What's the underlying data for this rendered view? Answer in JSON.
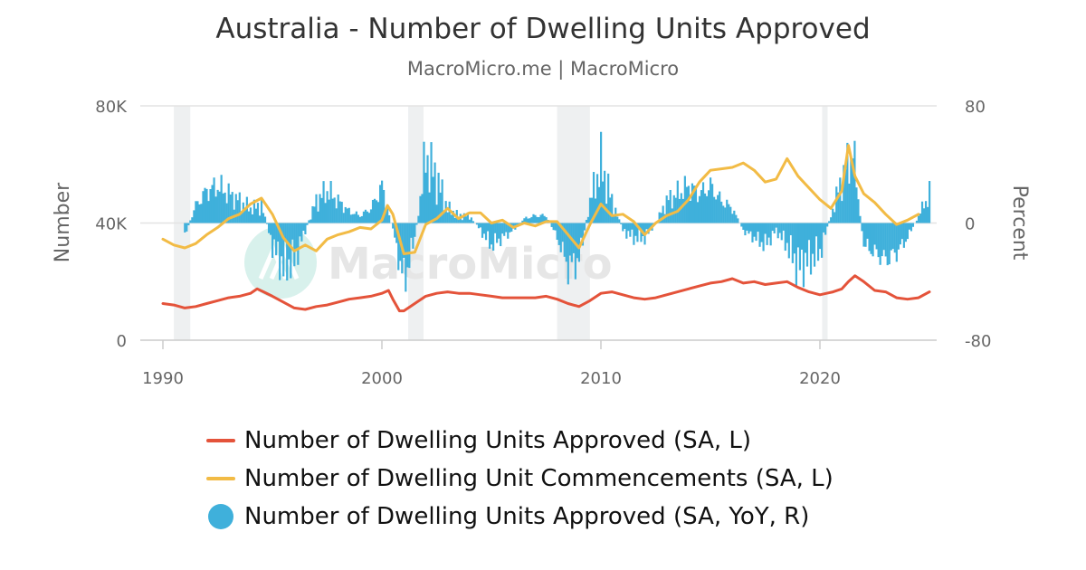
{
  "title": "Australia - Number of Dwelling Units Approved",
  "subtitle": "MacroMicro.me | MacroMicro",
  "watermark": "MacroMicro",
  "colors": {
    "approved": "#e4533a",
    "commencements": "#f2bb45",
    "yoy": "#3fb0db",
    "recession": "#eef0f1"
  },
  "chart_data": {
    "type": "line",
    "title": "Australia - Number of Dwelling Units Approved",
    "xlim": [
      1990,
      2025
    ],
    "x_ticks": [
      "1990",
      "2000",
      "2010",
      "2020"
    ],
    "y_left": {
      "label": "Number",
      "ylim": [
        0,
        80000
      ],
      "tick_labels": [
        "0",
        "40K",
        "80K"
      ]
    },
    "y_right": {
      "label": "Percent",
      "ylim": [
        -80,
        80
      ],
      "tick_labels": [
        "-80",
        "0",
        "80"
      ]
    },
    "grid": "horizontal",
    "legend_position": "bottom",
    "recession_bands": [
      [
        1990.5,
        1991.25
      ],
      [
        2001.2,
        2001.9
      ],
      [
        2008.0,
        2009.5
      ],
      [
        2020.1,
        2020.35
      ]
    ],
    "series": [
      {
        "name": "Number of Dwelling Units Approved (SA, L)",
        "axis": "left",
        "x": [
          1990,
          1990.5,
          1991,
          1991.5,
          1992,
          1992.5,
          1993,
          1993.5,
          1994,
          1994.3,
          1994.6,
          1995,
          1995.5,
          1996,
          1996.5,
          1997,
          1997.5,
          1998,
          1998.5,
          1999,
          1999.5,
          2000,
          2000.3,
          2000.5,
          2000.8,
          2001,
          2001.3,
          2001.6,
          2002,
          2002.5,
          2003,
          2003.5,
          2004,
          2004.5,
          2005,
          2005.5,
          2006,
          2006.5,
          2007,
          2007.5,
          2008,
          2008.5,
          2009,
          2009.5,
          2010,
          2010.5,
          2011,
          2011.5,
          2012,
          2012.5,
          2013,
          2013.5,
          2014,
          2014.5,
          2015,
          2015.5,
          2016,
          2016.5,
          2017,
          2017.5,
          2018,
          2018.5,
          2019,
          2019.5,
          2020,
          2020.3,
          2020.6,
          2021,
          2021.3,
          2021.6,
          2022,
          2022.5,
          2023,
          2023.5,
          2024,
          2024.5,
          2025
        ],
        "values": [
          12500,
          12000,
          11000,
          11500,
          12500,
          13500,
          14500,
          15000,
          16000,
          17500,
          16500,
          15000,
          13000,
          11000,
          10500,
          11500,
          12000,
          13000,
          14000,
          14500,
          15000,
          16000,
          17000,
          14000,
          10000,
          10000,
          11500,
          13000,
          15000,
          16000,
          16500,
          16000,
          16000,
          15500,
          15000,
          14500,
          14500,
          14500,
          14500,
          15000,
          14000,
          12500,
          11500,
          13500,
          16000,
          16500,
          15500,
          14500,
          14000,
          14500,
          15500,
          16500,
          17500,
          18500,
          19500,
          20000,
          21000,
          19500,
          20000,
          19000,
          19500,
          20000,
          18000,
          16500,
          15500,
          16000,
          16500,
          17500,
          20000,
          22000,
          20000,
          17000,
          16500,
          14500,
          14000,
          14500,
          16500
        ]
      },
      {
        "name": "Number of Dwelling Unit Commencements (SA, L)",
        "axis": "left",
        "x": [
          1990,
          1990.5,
          1991,
          1991.5,
          1992,
          1992.5,
          1993,
          1993.5,
          1994,
          1994.5,
          1995,
          1995.5,
          1996,
          1996.5,
          1997,
          1997.5,
          1998,
          1998.5,
          1999,
          1999.5,
          2000,
          2000.25,
          2000.5,
          2001,
          2001.5,
          2002,
          2002.5,
          2003,
          2003.5,
          2004,
          2004.5,
          2005,
          2005.5,
          2006,
          2006.5,
          2007,
          2007.5,
          2008,
          2008.5,
          2009,
          2009.5,
          2010,
          2010.5,
          2011,
          2011.5,
          2012,
          2012.5,
          2013,
          2013.5,
          2014,
          2014.5,
          2015,
          2015.5,
          2016,
          2016.5,
          2017,
          2017.5,
          2018,
          2018.5,
          2019,
          2019.5,
          2020,
          2020.5,
          2021,
          2021.3,
          2021.6,
          2022,
          2022.5,
          2023,
          2023.5,
          2024,
          2024.5
        ],
        "values": [
          34500,
          32500,
          31500,
          33000,
          36000,
          38500,
          41500,
          43000,
          46500,
          48500,
          43000,
          35000,
          30500,
          32500,
          30500,
          34500,
          36000,
          37000,
          38500,
          38000,
          41000,
          46000,
          43000,
          29500,
          30000,
          39500,
          41500,
          45000,
          41500,
          43500,
          43500,
          40000,
          41000,
          38500,
          40000,
          39000,
          40500,
          40500,
          36000,
          31500,
          39500,
          46500,
          42500,
          43000,
          40500,
          36000,
          40000,
          42500,
          44000,
          48000,
          54000,
          58000,
          58500,
          59000,
          60500,
          58000,
          54000,
          55000,
          62000,
          56000,
          52000,
          48000,
          45000,
          51000,
          66500,
          56000,
          50000,
          47000,
          43000,
          39500,
          41000,
          43000
        ]
      },
      {
        "name": "Number of Dwelling Units Approved (SA, YoY, R)",
        "axis": "right",
        "type": "bar",
        "x": [
          1991,
          1991.5,
          1992,
          1992.5,
          1993,
          1993.5,
          1994,
          1994.5,
          1995,
          1995.5,
          1996,
          1996.5,
          1997,
          1997.5,
          1998,
          1998.5,
          1999,
          1999.5,
          2000,
          2000.5,
          2001,
          2001.5,
          2002,
          2002.5,
          2003,
          2003.5,
          2004,
          2004.5,
          2005,
          2005.5,
          2006,
          2006.5,
          2007,
          2007.5,
          2008,
          2008.5,
          2009,
          2009.5,
          2010,
          2010.5,
          2011,
          2011.5,
          2012,
          2012.5,
          2013,
          2013.5,
          2014,
          2014.5,
          2015,
          2015.5,
          2016,
          2016.5,
          2017,
          2017.5,
          2018,
          2018.5,
          2019,
          2019.5,
          2020,
          2020.5,
          2021,
          2021.5,
          2022,
          2022.5,
          2023,
          2023.5,
          2024,
          2024.5,
          2025
        ],
        "values": [
          -8,
          12,
          22,
          25,
          20,
          15,
          10,
          12,
          -15,
          -30,
          -25,
          -5,
          15,
          22,
          15,
          8,
          5,
          10,
          25,
          -5,
          -40,
          -10,
          45,
          30,
          10,
          5,
          5,
          -5,
          -15,
          -10,
          -5,
          3,
          5,
          5,
          -10,
          -30,
          -25,
          15,
          40,
          15,
          -5,
          -10,
          -10,
          0,
          15,
          20,
          25,
          20,
          25,
          15,
          10,
          -5,
          -10,
          -15,
          -5,
          -15,
          -30,
          -25,
          -20,
          5,
          30,
          50,
          -15,
          -20,
          -25,
          -20,
          -10,
          5,
          20
        ]
      }
    ]
  }
}
